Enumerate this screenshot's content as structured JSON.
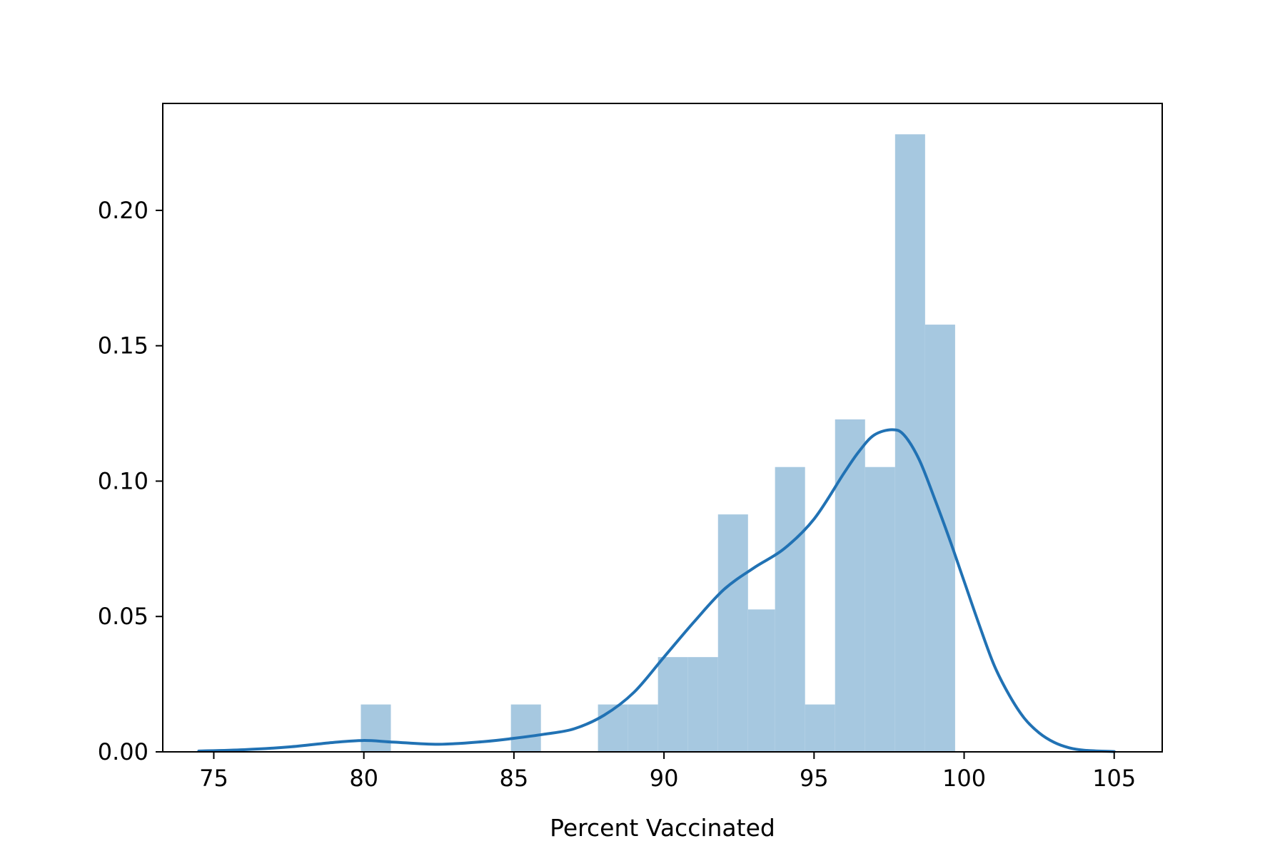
{
  "chart_data": {
    "type": "bar",
    "subtype": "histogram-with-kde",
    "title": "",
    "xlabel": "Percent Vaccinated",
    "ylabel": "",
    "xlim": [
      73.3,
      106.6
    ],
    "ylim": [
      0,
      0.2395
    ],
    "xticks": [
      75,
      80,
      85,
      90,
      95,
      100,
      105
    ],
    "xtick_labels": [
      "75",
      "80",
      "85",
      "90",
      "95",
      "100",
      "105"
    ],
    "yticks": [
      0,
      0.05,
      0.1,
      0.15,
      0.2
    ],
    "ytick_labels": [
      "0.00",
      "0.05",
      "0.10",
      "0.15",
      "0.20"
    ],
    "grid": false,
    "legend": "none",
    "bar_color": "#a6c8e0",
    "line_color": "#2172b4",
    "bins": [
      {
        "x0": 79.9,
        "x1": 80.9,
        "density": 0.0175
      },
      {
        "x0": 80.9,
        "x1": 81.9,
        "density": 0
      },
      {
        "x0": 81.9,
        "x1": 82.9,
        "density": 0
      },
      {
        "x0": 82.9,
        "x1": 83.9,
        "density": 0
      },
      {
        "x0": 83.9,
        "x1": 84.9,
        "density": 0
      },
      {
        "x0": 84.9,
        "x1": 85.9,
        "density": 0.0175
      },
      {
        "x0": 85.9,
        "x1": 86.8,
        "density": 0
      },
      {
        "x0": 86.8,
        "x1": 87.8,
        "density": 0
      },
      {
        "x0": 87.8,
        "x1": 88.8,
        "density": 0.0175
      },
      {
        "x0": 88.8,
        "x1": 89.8,
        "density": 0.0175
      },
      {
        "x0": 89.8,
        "x1": 90.8,
        "density": 0.035
      },
      {
        "x0": 90.8,
        "x1": 91.8,
        "density": 0.035
      },
      {
        "x0": 91.8,
        "x1": 92.8,
        "density": 0.0877
      },
      {
        "x0": 92.8,
        "x1": 93.7,
        "density": 0.0526
      },
      {
        "x0": 93.7,
        "x1": 94.7,
        "density": 0.1052
      },
      {
        "x0": 94.7,
        "x1": 95.7,
        "density": 0.0175
      },
      {
        "x0": 95.7,
        "x1": 96.7,
        "density": 0.1228
      },
      {
        "x0": 96.7,
        "x1": 97.7,
        "density": 0.1052
      },
      {
        "x0": 97.7,
        "x1": 98.7,
        "density": 0.2281
      },
      {
        "x0": 98.7,
        "x1": 99.7,
        "density": 0.1578
      }
    ],
    "kde": {
      "x": [
        74.5,
        76,
        77.5,
        79,
        80,
        81,
        82.5,
        84,
        85,
        86,
        87,
        88,
        89,
        90,
        91,
        92,
        93,
        94,
        95,
        96,
        96.5,
        97,
        97.6,
        98,
        98.5,
        99,
        99.5,
        100,
        100.5,
        101,
        101.5,
        102,
        102.5,
        103,
        103.5,
        104,
        105
      ],
      "y": [
        0.0003,
        0.0008,
        0.0018,
        0.0035,
        0.0042,
        0.0036,
        0.0028,
        0.0038,
        0.005,
        0.0065,
        0.0085,
        0.0135,
        0.022,
        0.035,
        0.048,
        0.06,
        0.068,
        0.075,
        0.086,
        0.103,
        0.111,
        0.117,
        0.119,
        0.117,
        0.108,
        0.094,
        0.079,
        0.063,
        0.047,
        0.032,
        0.021,
        0.0125,
        0.007,
        0.0035,
        0.0015,
        0.0006,
        0.0001
      ]
    }
  }
}
